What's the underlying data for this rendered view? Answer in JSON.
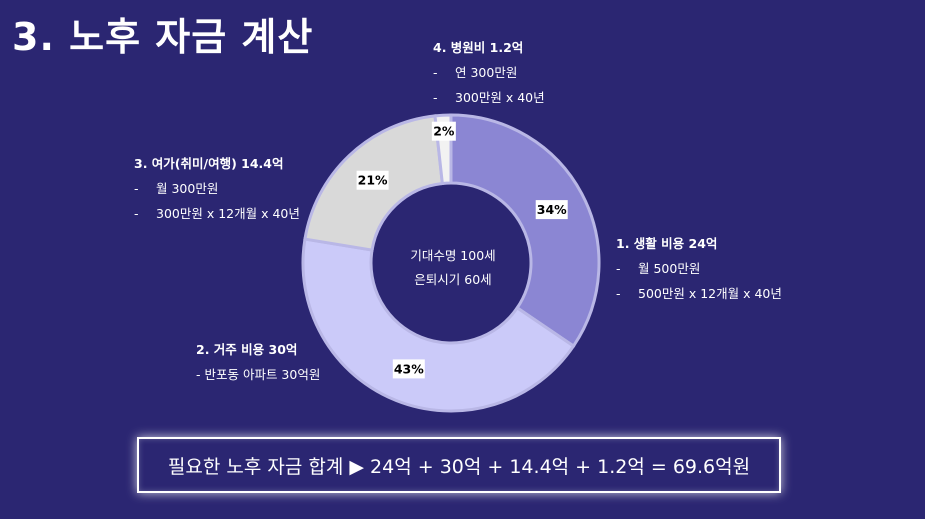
{
  "title": "3. 노후 자금 계산",
  "center": {
    "line1": "기대수명 100세",
    "line2": "은퇴시기 60세"
  },
  "callouts": {
    "living": {
      "head": "1. 생활 비용 24억",
      "items": [
        "월 500만원",
        "500만원 x 12개월 x 40년"
      ]
    },
    "housing": {
      "head": "2. 거주 비용 30억",
      "items": [
        "반포동 아파트 30억원"
      ]
    },
    "leisure": {
      "head": "3. 여가(취미/여행) 14.4억",
      "items": [
        "월 300만원",
        "300만원 x 12개월 x 40년"
      ]
    },
    "medical": {
      "head": "4. 병원비 1.2억",
      "items": [
        "연 300만원",
        "300만원 x 40년"
      ]
    }
  },
  "total": "필요한 노후 자금 합계 ▶ 24억 + 30억 + 14.4억 + 1.2억 = 69.6억원",
  "colors": {
    "background": "#2b2672",
    "living": "#8b86d3",
    "housing": "#cbcaf9",
    "leisure": "#d9d9d9",
    "medical": "#f2f2f2"
  },
  "chart_data": {
    "type": "pie",
    "subtype": "donut",
    "categories": [
      "생활 비용",
      "거주 비용",
      "여가(취미/여행)",
      "병원비"
    ],
    "values": [
      24,
      30,
      14.4,
      1.2
    ],
    "data_labels": [
      "34%",
      "43%",
      "21%",
      "2%"
    ],
    "start": "12 o'clock, clockwise"
  }
}
